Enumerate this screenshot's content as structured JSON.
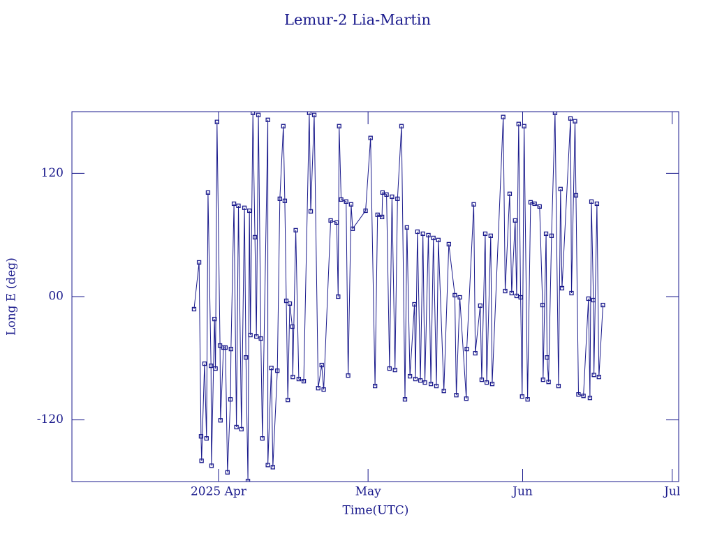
{
  "chart_data": {
    "type": "line",
    "title": "Lemur-2 Lia-Martin",
    "x_label": "Time(UTC)",
    "y_label": "Long E (deg)",
    "color": "#1a1a8c",
    "marker": "square",
    "x": [
      86.1,
      87.1,
      87.5,
      87.6,
      88.2,
      88.6,
      88.9,
      89.5,
      89.6,
      90.2,
      90.4,
      90.7,
      91.3,
      91.4,
      92.0,
      92.4,
      92.8,
      93.4,
      93.5,
      94.1,
      94.6,
      95.0,
      95.6,
      96.2,
      96.5,
      96.9,
      97.2,
      97.4,
      97.9,
      98.3,
      98.6,
      99.0,
      99.5,
      99.8,
      100.9,
      100.9,
      101.6,
      101.9,
      102.8,
      103.3,
      104.0,
      104.3,
      104.6,
      104.9,
      105.3,
      105.8,
      105.9,
      106.5,
      107.1,
      108.1,
      109.2,
      109.5,
      110.2,
      111.0,
      111.7,
      112.1,
      113.5,
      114.7,
      115.0,
      115.2,
      115.6,
      116.6,
      117.0,
      117.6,
      117.9,
      120.5,
      121.5,
      122.4,
      122.9,
      123.8,
      123.9,
      124.7,
      125.3,
      125.8,
      126.4,
      126.9,
      127.7,
      128.4,
      128.8,
      129.4,
      130.3,
      130.5,
      130.9,
      131.5,
      132.0,
      132.4,
      133.1,
      133.6,
      134.1,
      134.7,
      135.1,
      136.2,
      137.2,
      138.4,
      138.7,
      139.4,
      140.7,
      140.8,
      142.2,
      142.5,
      143.5,
      143.8,
      144.5,
      144.8,
      145.6,
      145.9,
      148.1,
      148.5,
      149.4,
      149.8,
      150.5,
      150.8,
      151.2,
      151.6,
      151.9,
      152.3,
      153.0,
      153.6,
      154.4,
      155.4,
      156.0,
      156.1,
      156.7,
      156.9,
      157.2,
      157.8,
      158.5,
      159.2,
      159.6,
      159.9,
      161.6,
      161.8,
      162.5,
      162.7,
      163.2,
      164.2,
      165.2,
      165.5,
      165.8,
      166.2,
      166.3,
      166.9,
      167.3,
      168.1
    ],
    "values": [
      -12.2,
      33.3,
      -136,
      -159.8,
      -65.3,
      -138,
      101.3,
      -67.3,
      -164.6,
      -21.8,
      -70,
      170,
      -47.6,
      -120.4,
      -49.6,
      -49.6,
      -171,
      -100,
      -51,
      90.4,
      -127,
      88.4,
      -129,
      86.4,
      -59.2,
      -179.5,
      83.6,
      -37.4,
      178.8,
      57.8,
      -38.8,
      176.8,
      -40.8,
      -138,
      172,
      -163.9,
      -69.4,
      -166,
      -72.1,
      95.2,
      165.9,
      93.2,
      -4.1,
      -100.6,
      -6.8,
      -29.2,
      -78.2,
      64.6,
      -80.2,
      -82.3,
      178.8,
      83,
      176.8,
      -89.1,
      -66.6,
      -90.4,
      74.1,
      72.1,
      0,
      165.9,
      94.5,
      92.5,
      -76.8,
      89.8,
      66,
      83.6,
      154.4,
      -87,
      79.6,
      77.5,
      101.3,
      99.3,
      -70,
      97.2,
      -71.4,
      95.2,
      165.9,
      -100,
      67.3,
      -77.5,
      -7.5,
      -80.2,
      63.2,
      -81.6,
      61.2,
      -83.6,
      59.8,
      -85,
      57.1,
      -87,
      55.1,
      -91.8,
      51,
      1.4,
      -95.9,
      -0.7,
      -99.3,
      -51,
      89.8,
      -55.1,
      -8.8,
      -80.9,
      61.2,
      -83.6,
      59.2,
      -85,
      174.8,
      5.4,
      100,
      3.4,
      74.1,
      0.7,
      168,
      -0.7,
      -97.2,
      165.9,
      -100,
      91.8,
      90.4,
      87.7,
      -8.2,
      -80.9,
      61.2,
      -59.2,
      -83,
      59.2,
      178.8,
      -87,
      104.7,
      8.2,
      173.4,
      3.4,
      170.7,
      98.6,
      -95.2,
      -96.6,
      -2,
      -98.6,
      92.5,
      -3.4,
      -76.2,
      90.4,
      -78.2,
      -8.2
    ],
    "xlim": [
      61.6,
      183.3
    ],
    "xticks": [
      {
        "value": 91,
        "label": "2025 Apr"
      },
      {
        "value": 121,
        "label": "May"
      },
      {
        "value": 152,
        "label": "Jun"
      },
      {
        "value": 182,
        "label": "Jul"
      }
    ],
    "ylim": [
      -180,
      180
    ],
    "yticks": [
      {
        "value": -120,
        "label": "-120"
      },
      {
        "value": 0,
        "label": "00"
      },
      {
        "value": 120,
        "label": "120"
      }
    ]
  }
}
